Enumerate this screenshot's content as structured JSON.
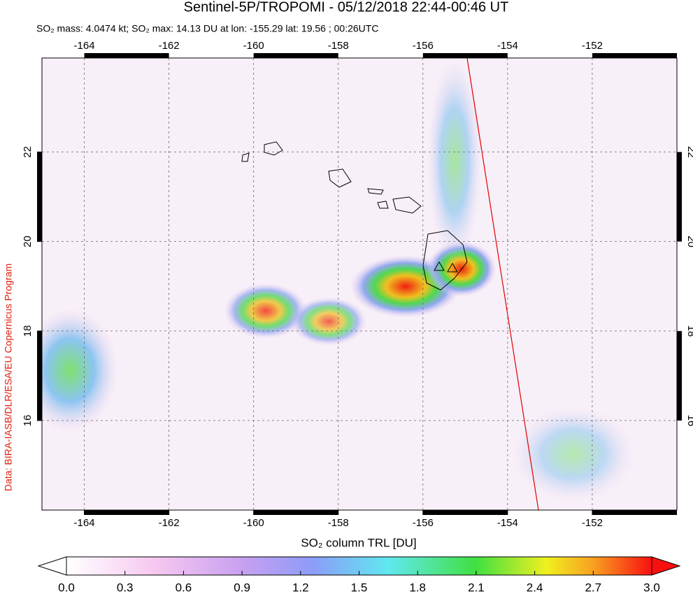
{
  "chart_data": {
    "type": "map",
    "title": "Sentinel-5P/TROPOMI - 05/12/2018 22:44-00:46 UT",
    "subtitle": "SO₂ mass: 4.0474 kt; SO₂ max: 14.13 DU at lon: -155.29 lat: 19.56 ; 00:26UTC",
    "side_note": "Data: BIRA-IASB/DLR/ESA/EU Copernicus Program",
    "colorbar_label": "SO₂ column TRL [DU]",
    "xlim": [
      -165,
      -150
    ],
    "xticks": [
      -164,
      -162,
      -160,
      -158,
      -156,
      -154,
      -152
    ],
    "ylim": [
      14,
      24.1
    ],
    "yticks": [
      16,
      18,
      20,
      22
    ],
    "grid": true,
    "clim": [
      0,
      3
    ],
    "cticks": [
      {
        "value": 0,
        "label": "0.0"
      },
      {
        "value": 0.3,
        "label": "0.3"
      },
      {
        "value": 0.6,
        "label": "0.6"
      },
      {
        "value": 0.9,
        "label": "0.9"
      },
      {
        "value": 1.2,
        "label": "1.2"
      },
      {
        "value": 1.5,
        "label": "1.5"
      },
      {
        "value": 1.8,
        "label": "1.8"
      },
      {
        "value": 2.1,
        "label": "2.1"
      },
      {
        "value": 2.4,
        "label": "2.4"
      },
      {
        "value": 2.7,
        "label": "2.7"
      },
      {
        "value": 3,
        "label": "3.0"
      }
    ]
  }
}
